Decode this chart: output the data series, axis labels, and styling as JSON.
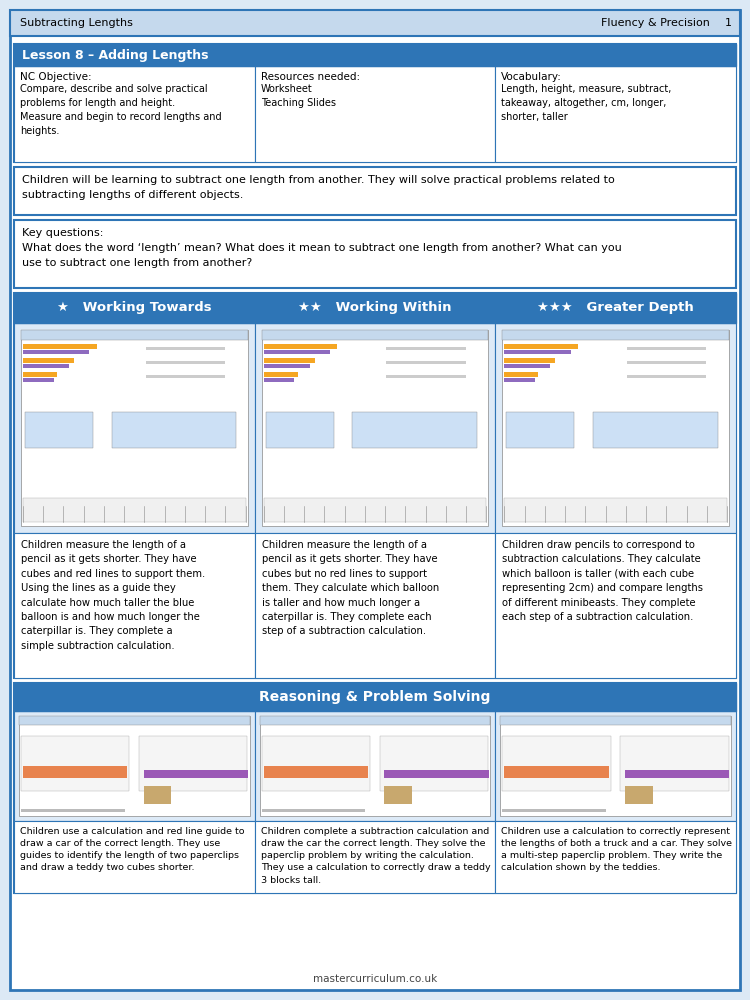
{
  "title_bar": {
    "text_left": "Subtracting Lengths",
    "text_right": "Fluency & Precision",
    "page_num": "1",
    "bg_color": "#c5d9ed",
    "border_color": "#2e75b6",
    "text_color": "#000000"
  },
  "lesson_box": {
    "header": "Lesson 8 – Adding Lengths",
    "header_bg": "#2e75b6",
    "header_text_color": "#ffffff",
    "border_color": "#2e75b6",
    "col1_title": "NC Objective:",
    "col1_text": "Compare, describe and solve practical\nproblems for length and height.\nMeasure and begin to record lengths and\nheights.",
    "col2_title": "Resources needed:",
    "col2_text": "Worksheet\nTeaching Slides",
    "col3_title": "Vocabulary:",
    "col3_text": "Length, height, measure, subtract,\ntakeaway, altogether, cm, longer,\nshorter, taller"
  },
  "learning_text": "Children will be learning to subtract one length from another. They will solve practical problems related to\nsubtracting lengths of different objects.",
  "key_questions_text": "Key questions:\nWhat does the word ‘length’ mean? What does it mean to subtract one length from another? What can you\nuse to subtract one length from another?",
  "differentiation": {
    "header_bg": "#2e75b6",
    "header_text_color": "#ffffff",
    "border_color": "#2e75b6",
    "cols": [
      {
        "stars": 1,
        "label": "Working Towards",
        "desc": "Children measure the length of a\npencil as it gets shorter. They have\ncubes and red lines to support them.\nUsing the lines as a guide they\ncalculate how much taller the blue\nballoon is and how much longer the\ncaterpillar is. They complete a\nsimple subtraction calculation."
      },
      {
        "stars": 2,
        "label": "Working Within",
        "desc": "Children measure the length of a\npencil as it gets shorter. They have\ncubes but no red lines to support\nthem. They calculate which balloon\nis taller and how much longer a\ncaterpillar is. They complete each\nstep of a subtraction calculation."
      },
      {
        "stars": 3,
        "label": "Greater Depth",
        "desc": "Children draw pencils to correspond to\nsubtraction calculations. They calculate\nwhich balloon is taller (with each cube\nrepresenting 2cm) and compare lengths\nof different minibeasts. They complete\neach step of a subtraction calculation."
      }
    ]
  },
  "reasoning": {
    "header": "Reasoning & Problem Solving",
    "header_bg": "#2e75b6",
    "header_text_color": "#ffffff",
    "border_color": "#2e75b6",
    "cols": [
      {
        "desc": "Children use a calculation and red line guide to\ndraw a car of the correct length. They use\nguides to identify the length of two paperclips\nand draw a teddy two cubes shorter."
      },
      {
        "desc": "Children complete a subtraction calculation and\ndraw the car the correct length. They solve the\npaperclip problem by writing the calculation.\nThey use a calculation to correctly draw a teddy\n3 blocks tall."
      },
      {
        "desc": "Children use a calculation to correctly represent\nthe lengths of both a truck and a car. They solve\na multi-step paperclip problem. They write the\ncalculation shown by the teddies."
      }
    ]
  },
  "footer_text": "mastercurriculum.co.uk",
  "bg_color": "#ffffff",
  "outer_border_color": "#2e75b6",
  "page_bg": "#dce9f5"
}
